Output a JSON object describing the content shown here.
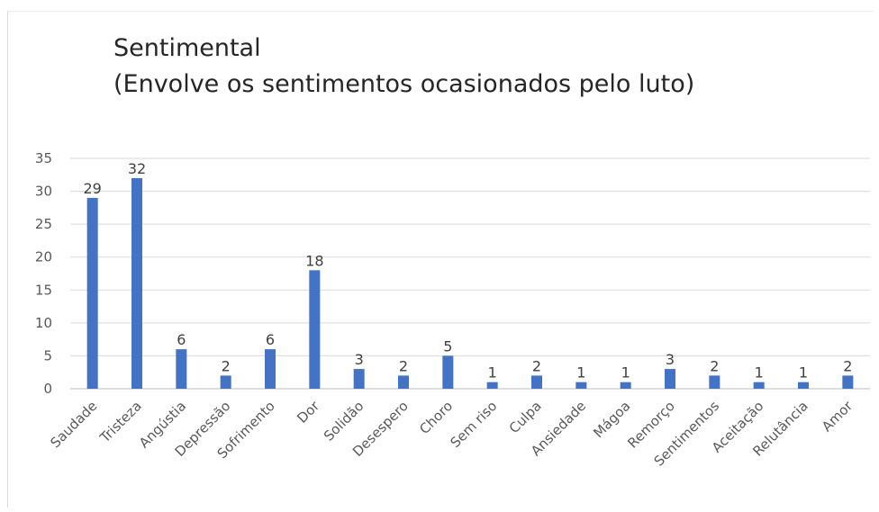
{
  "chart_data": {
    "type": "bar",
    "title": "Sentimental",
    "subtitle": "(Envolve os sentimentos ocasionados pelo luto)",
    "xlabel": "",
    "ylabel": "",
    "ylim": [
      0,
      35
    ],
    "yticks": [
      0,
      5,
      10,
      15,
      20,
      25,
      30,
      35
    ],
    "grid": true,
    "legend": "none",
    "bar_color": "#4472C4",
    "categories": [
      "Saudade",
      "Tristeza",
      "Angústia",
      "Depressão",
      "Sofrimento",
      "Dor",
      "Solidão",
      "Desespero",
      "Choro",
      "Sem riso",
      "Culpa",
      "Ansiedade",
      "Mágoa",
      "Remorço",
      "Sentimentos",
      "Aceitação",
      "Relutância",
      "Amor"
    ],
    "values": [
      29,
      32,
      6,
      2,
      6,
      18,
      3,
      2,
      5,
      1,
      2,
      1,
      1,
      3,
      2,
      1,
      1,
      2
    ]
  }
}
